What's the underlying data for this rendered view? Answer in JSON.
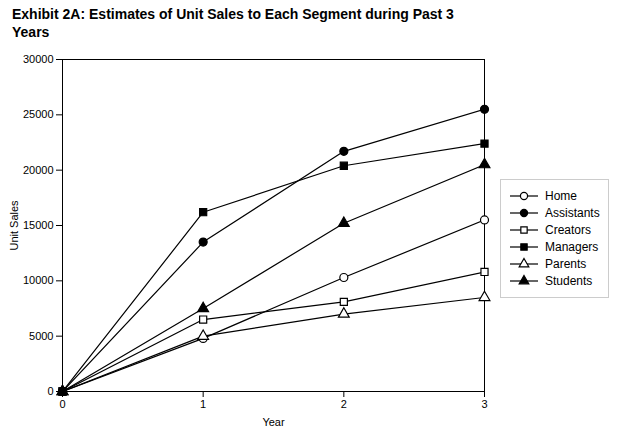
{
  "chart_data": {
    "type": "line",
    "title": "Exhibit 2A: Estimates of Unit Sales to Each Segment during Past 3\nYears",
    "xlabel": "Year",
    "ylabel": "Unit Sales",
    "x": [
      0,
      1,
      2,
      3
    ],
    "series": [
      {
        "name": "Home",
        "values": [
          0,
          4800,
          10300,
          15500
        ],
        "color": "black",
        "marker": "hollow-circle"
      },
      {
        "name": "Assistants",
        "values": [
          0,
          13500,
          21700,
          25500
        ],
        "color": "black",
        "marker": "circle"
      },
      {
        "name": "Creators",
        "values": [
          0,
          6500,
          8100,
          10800
        ],
        "color": "black",
        "marker": "hollow-square"
      },
      {
        "name": "Managers",
        "values": [
          0,
          16200,
          20400,
          22400
        ],
        "color": "black",
        "marker": "square"
      },
      {
        "name": "Parents",
        "values": [
          0,
          5000,
          7000,
          8500
        ],
        "color": "black",
        "marker": "hollow-triangle"
      },
      {
        "name": "Students",
        "values": [
          0,
          7500,
          15200,
          20500
        ],
        "color": "black",
        "marker": "triangle"
      }
    ],
    "xlim": [
      0,
      3
    ],
    "xticks": [
      0,
      1,
      2,
      3
    ],
    "ylim": [
      0,
      30000
    ],
    "yticks": [
      0,
      5000,
      10000,
      15000,
      20000,
      25000,
      30000
    ],
    "grid": false,
    "legend": "right"
  }
}
